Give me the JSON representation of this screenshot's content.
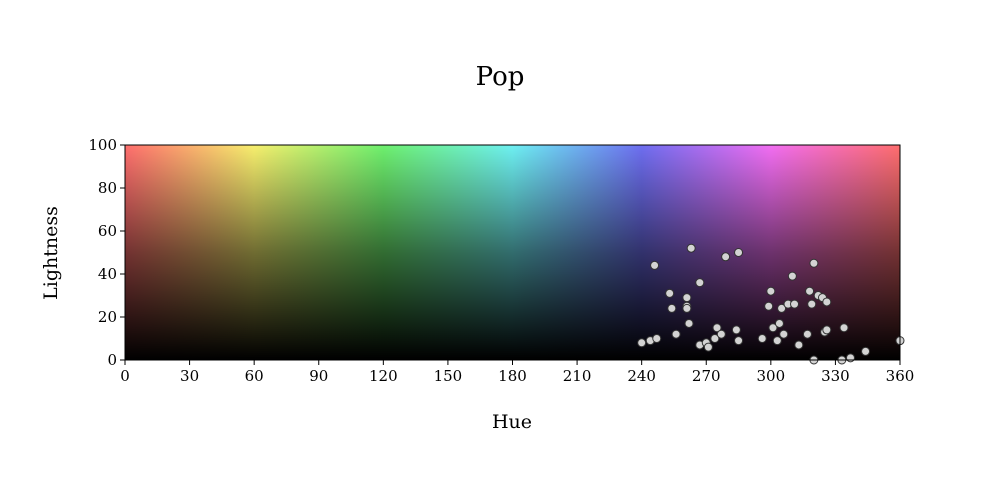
{
  "chart_data": {
    "type": "scatter",
    "title": "Pop",
    "xlabel": "Hue",
    "ylabel": "Lightness",
    "xlim": [
      0,
      360
    ],
    "ylim": [
      0,
      100
    ],
    "xticks": [
      0,
      30,
      60,
      90,
      120,
      150,
      180,
      210,
      240,
      270,
      300,
      330,
      360
    ],
    "yticks": [
      0,
      20,
      40,
      60,
      80,
      100
    ],
    "background": "hue-lightness color gradient",
    "grid": false,
    "marker_color": "#d3d3d3",
    "marker_edge": "#333333",
    "points": [
      {
        "x": 240,
        "y": 8
      },
      {
        "x": 244,
        "y": 9
      },
      {
        "x": 247,
        "y": 10
      },
      {
        "x": 246,
        "y": 44
      },
      {
        "x": 253,
        "y": 31
      },
      {
        "x": 254,
        "y": 24
      },
      {
        "x": 256,
        "y": 12
      },
      {
        "x": 261,
        "y": 29
      },
      {
        "x": 261,
        "y": 25
      },
      {
        "x": 261,
        "y": 24
      },
      {
        "x": 262,
        "y": 17
      },
      {
        "x": 263,
        "y": 52
      },
      {
        "x": 267,
        "y": 36
      },
      {
        "x": 267,
        "y": 7
      },
      {
        "x": 270,
        "y": 8
      },
      {
        "x": 271,
        "y": 6
      },
      {
        "x": 274,
        "y": 10
      },
      {
        "x": 275,
        "y": 15
      },
      {
        "x": 277,
        "y": 12
      },
      {
        "x": 279,
        "y": 48
      },
      {
        "x": 284,
        "y": 14
      },
      {
        "x": 285,
        "y": 9
      },
      {
        "x": 285,
        "y": 50
      },
      {
        "x": 296,
        "y": 10
      },
      {
        "x": 299,
        "y": 25
      },
      {
        "x": 300,
        "y": 32
      },
      {
        "x": 301,
        "y": 15
      },
      {
        "x": 303,
        "y": 9
      },
      {
        "x": 304,
        "y": 17
      },
      {
        "x": 305,
        "y": 24
      },
      {
        "x": 306,
        "y": 12
      },
      {
        "x": 308,
        "y": 26
      },
      {
        "x": 310,
        "y": 39
      },
      {
        "x": 311,
        "y": 26
      },
      {
        "x": 313,
        "y": 7
      },
      {
        "x": 317,
        "y": 12
      },
      {
        "x": 318,
        "y": 32
      },
      {
        "x": 319,
        "y": 26
      },
      {
        "x": 320,
        "y": 45
      },
      {
        "x": 322,
        "y": 30
      },
      {
        "x": 324,
        "y": 29
      },
      {
        "x": 325,
        "y": 13
      },
      {
        "x": 326,
        "y": 14
      },
      {
        "x": 326,
        "y": 27
      },
      {
        "x": 320,
        "y": 0
      },
      {
        "x": 333,
        "y": 0
      },
      {
        "x": 334,
        "y": 15
      },
      {
        "x": 337,
        "y": 1
      },
      {
        "x": 344,
        "y": 4
      },
      {
        "x": 360,
        "y": 9
      }
    ]
  }
}
